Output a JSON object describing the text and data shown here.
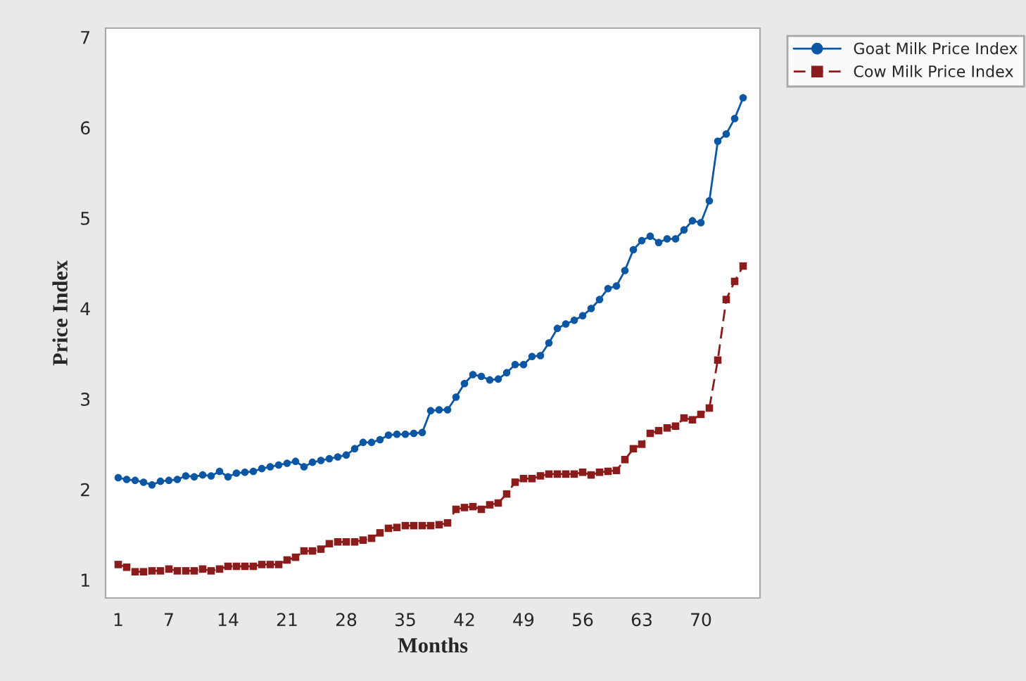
{
  "chart_data": {
    "type": "line",
    "xlabel": "Months",
    "ylabel": "Price Index",
    "x": [
      1,
      2,
      3,
      4,
      5,
      6,
      7,
      8,
      9,
      10,
      11,
      12,
      13,
      14,
      15,
      16,
      17,
      18,
      19,
      20,
      21,
      22,
      23,
      24,
      25,
      26,
      27,
      28,
      29,
      30,
      31,
      32,
      33,
      34,
      35,
      36,
      37,
      38,
      39,
      40,
      41,
      42,
      43,
      44,
      45,
      46,
      47,
      48,
      49,
      50,
      51,
      52,
      53,
      54,
      55,
      56,
      57,
      58,
      59,
      60,
      61,
      62,
      63,
      64,
      65,
      66,
      67,
      68,
      69,
      70,
      71,
      72,
      73,
      74,
      75
    ],
    "series": [
      {
        "name": "Goat Milk Price Index",
        "color": "#0b57a4",
        "marker": "circle",
        "line_style": "solid",
        "values": [
          2.13,
          2.11,
          2.1,
          2.08,
          2.05,
          2.09,
          2.1,
          2.11,
          2.15,
          2.14,
          2.16,
          2.15,
          2.2,
          2.14,
          2.18,
          2.19,
          2.2,
          2.23,
          2.25,
          2.27,
          2.29,
          2.31,
          2.25,
          2.3,
          2.32,
          2.34,
          2.36,
          2.38,
          2.45,
          2.52,
          2.52,
          2.55,
          2.6,
          2.61,
          2.61,
          2.62,
          2.63,
          2.87,
          2.88,
          2.88,
          3.02,
          3.17,
          3.27,
          3.25,
          3.21,
          3.22,
          3.29,
          3.38,
          3.38,
          3.47,
          3.48,
          3.62,
          3.78,
          3.83,
          3.87,
          3.92,
          4.0,
          4.1,
          4.22,
          4.25,
          4.42,
          4.65,
          4.75,
          4.8,
          4.73,
          4.77,
          4.77,
          4.87,
          4.97,
          4.95,
          5.19,
          5.85,
          5.93,
          6.1,
          6.33
        ]
      },
      {
        "name": "Cow Milk Price Index",
        "color": "#8b1c1c",
        "marker": "square",
        "line_style": "dashed",
        "values": [
          1.17,
          1.14,
          1.09,
          1.09,
          1.1,
          1.1,
          1.12,
          1.1,
          1.1,
          1.1,
          1.12,
          1.1,
          1.12,
          1.15,
          1.15,
          1.15,
          1.15,
          1.17,
          1.17,
          1.17,
          1.22,
          1.25,
          1.32,
          1.32,
          1.34,
          1.4,
          1.42,
          1.42,
          1.42,
          1.44,
          1.46,
          1.52,
          1.57,
          1.58,
          1.6,
          1.6,
          1.6,
          1.6,
          1.61,
          1.63,
          1.78,
          1.8,
          1.81,
          1.78,
          1.83,
          1.85,
          1.95,
          2.08,
          2.12,
          2.12,
          2.15,
          2.17,
          2.17,
          2.17,
          2.17,
          2.19,
          2.16,
          2.19,
          2.2,
          2.21,
          2.33,
          2.45,
          2.5,
          2.62,
          2.65,
          2.68,
          2.7,
          2.79,
          2.77,
          2.83,
          2.9,
          3.43,
          4.1,
          4.3,
          4.47
        ]
      }
    ],
    "xlim": [
      -0.5,
      77
    ],
    "xticks": [
      1,
      7,
      14,
      21,
      28,
      35,
      42,
      49,
      56,
      63,
      70
    ],
    "ylim": [
      0.8,
      7.1
    ],
    "yticks": [
      1,
      2,
      3,
      4,
      5,
      6,
      7
    ],
    "grid": false,
    "legend": "top right"
  }
}
